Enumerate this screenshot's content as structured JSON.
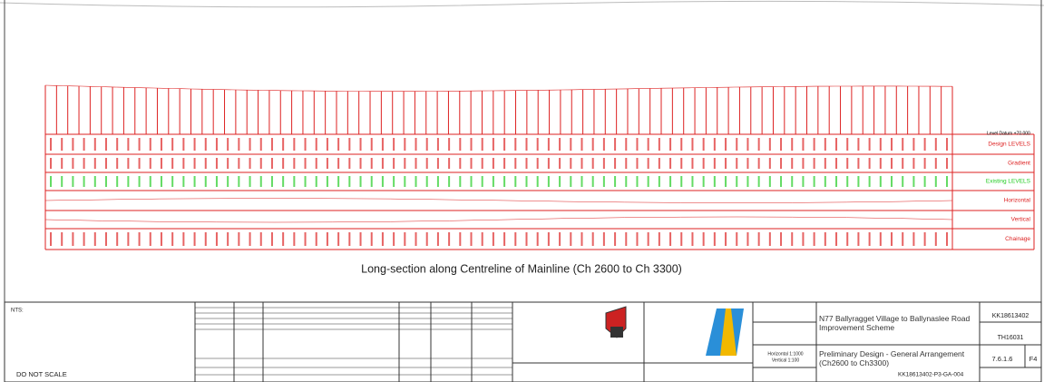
{
  "long_section": {
    "level_datum": "Level Datum +70.000",
    "rows": [
      "Design LEVELS",
      "Gradient",
      "Existing LEVELS",
      "Horizontal",
      "Vertical",
      "Chainage"
    ],
    "caption": "Long-section along Centreline of Mainline (Ch 2600 to Ch 3300)"
  },
  "title_block": {
    "notes_label": "NTS:",
    "do_not_scale": "DO NOT SCALE",
    "project_title": "N77 Ballyragget Village to Ballynaslee Road Improvement Scheme",
    "drawing_title": "Preliminary Design - General Arrangement (Ch2600 to Ch3300)",
    "scale_horizontal": "Horizontal 1:1000",
    "scale_vertical": "Vertical 1:100",
    "project_no": "KK18613402",
    "client_no": "TH16031",
    "drawing_ref": "7.6.1.6",
    "size": "F4",
    "drawing_no": "KK18613402-P3-GA-004"
  }
}
